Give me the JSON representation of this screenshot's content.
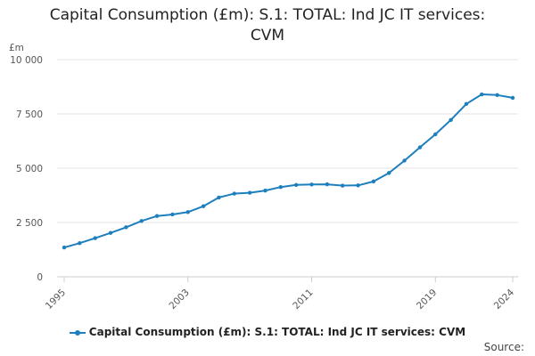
{
  "chart_data": {
    "type": "line",
    "title_lines": [
      "Capital Consumption (£m): S.1: TOTAL: Ind JC IT services:",
      "CVM"
    ],
    "ylabel": "£m",
    "xlabel": "",
    "ylim": [
      0,
      10000
    ],
    "xlim": [
      1995,
      2024
    ],
    "y_ticks": [
      0,
      2500,
      5000,
      7500,
      10000
    ],
    "y_tick_labels": [
      "0",
      "2 500",
      "5 000",
      "7 500",
      "10 000"
    ],
    "x_ticks": [
      1995,
      2003,
      2011,
      2019,
      2024
    ],
    "x_tick_labels": [
      "1995",
      "2003",
      "2011",
      "2019",
      "2024"
    ],
    "grid": true,
    "legend_position": "bottom",
    "series": [
      {
        "name": "Capital Consumption (£m): S.1: TOTAL: Ind JC IT services: CVM",
        "color": "#1d7fbd",
        "x": [
          1995,
          1996,
          1997,
          1998,
          1999,
          2000,
          2001,
          2002,
          2003,
          2004,
          2005,
          2006,
          2007,
          2008,
          2009,
          2010,
          2011,
          2012,
          2013,
          2014,
          2015,
          2016,
          2017,
          2018,
          2019,
          2020,
          2021,
          2022,
          2023,
          2024
        ],
        "values": [
          1350,
          1550,
          1780,
          2020,
          2280,
          2570,
          2800,
          2870,
          2980,
          3250,
          3650,
          3830,
          3870,
          3970,
          4130,
          4230,
          4250,
          4260,
          4200,
          4210,
          4390,
          4780,
          5350,
          5960,
          6560,
          7220,
          7960,
          8400,
          8370,
          8240
        ]
      }
    ]
  },
  "source_label": "Source:"
}
